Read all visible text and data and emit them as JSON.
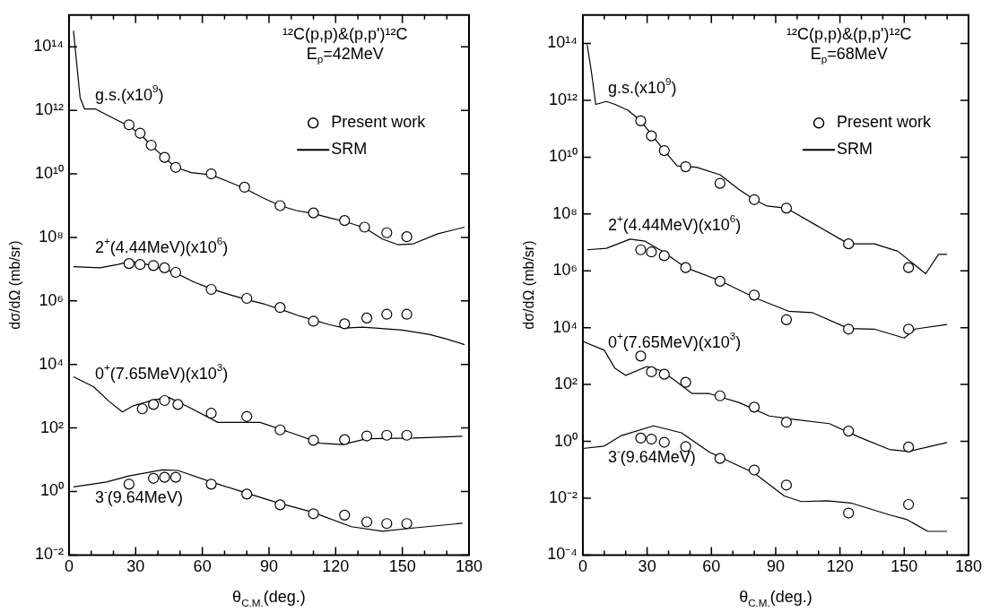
{
  "chart_data": [
    {
      "type": "scatter",
      "title": "¹²C(p,p)&(p,p')¹²C",
      "subtitle": "E$_{p}$=42MeV",
      "xlabel": "θ$_{C.M.}$(deg.)",
      "ylabel": "dσ/dΩ (mb/sr)",
      "log": "y",
      "legend": "top right",
      "xlim": [
        0,
        180
      ],
      "xticks": [
        0,
        {
          "value": 10,
          "label": null
        },
        {
          "value": 20,
          "label": null
        },
        30,
        {
          "value": 40,
          "label": null
        },
        {
          "value": 50,
          "label": null
        },
        60,
        {
          "value": 70,
          "label": null
        },
        {
          "value": 80,
          "label": null
        },
        90,
        {
          "value": 100,
          "label": null
        },
        {
          "value": 110,
          "label": null
        },
        120,
        {
          "value": 130,
          "label": null
        },
        {
          "value": 140,
          "label": null
        },
        150,
        {
          "value": 160,
          "label": null
        },
        {
          "value": 170,
          "label": null
        },
        180
      ],
      "ylim": [
        0.01,
        1000000000000000.0
      ],
      "yticks": [
        {
          "value": 0.01,
          "label": "10⁻²"
        },
        {
          "value": 1,
          "label": "10⁰"
        },
        {
          "value": 100,
          "label": "10²"
        },
        {
          "value": 10000.0,
          "label": "10⁴"
        },
        {
          "value": 1000000.0,
          "label": "10⁶"
        },
        {
          "value": 100000000.0,
          "label": "10⁸"
        },
        {
          "value": 10000000000.0,
          "label": "10¹⁰"
        },
        {
          "value": 1000000000000.0,
          "label": "10¹²"
        },
        {
          "value": 100000000000000.0,
          "label": "10¹⁴"
        }
      ],
      "annotations": [
        "g.s.(x10$^{9}$)",
        "2$^{+}$(4.44MeV)(x10$^{6}$)",
        "0$^{+}$(7.65MeV)(x10$^{3}$)",
        "3$^{-}$(9.64MeV)"
      ],
      "series": [
        {
          "name": "Present work",
          "color": "#000000",
          "marker": "circle",
          "x": [
            27,
            32,
            37,
            43,
            48,
            64,
            79,
            95,
            110,
            124,
            133,
            143,
            152
          ],
          "values": [
            350000000000.0,
            190000000000.0,
            80000000000.0,
            33000000000.0,
            16000000000.0,
            10000000000.0,
            3800000000.0,
            1000000000.0,
            590000000.0,
            340000000.0,
            210000000.0,
            140000000.0,
            105000000.0
          ]
        },
        {
          "type": "line",
          "name": "SRM",
          "color": "#000000",
          "x": [
            2,
            3,
            5,
            7,
            12,
            20,
            27,
            32,
            37,
            43,
            48,
            55,
            64,
            72,
            79,
            87,
            95,
            102,
            110,
            118,
            124,
            133,
            141,
            148,
            155,
            166,
            178
          ],
          "values": [
            320000000000000.0,
            63000000000000.0,
            2500000000000.0,
            1100000000000.0,
            1100000000000.0,
            560000000000.0,
            320000000000.0,
            180000000000.0,
            79000000000.0,
            32000000000.0,
            16000000000.0,
            11000000000.0,
            9300000000.0,
            5600000000.0,
            3500000000.0,
            1800000000.0,
            1000000000.0,
            710000000.0,
            560000000.0,
            400000000.0,
            320000000.0,
            200000000.0,
            89000000.0,
            59000000.0,
            63000000.0,
            130000000.0,
            210000000.0
          ]
        },
        {
          "color": "#000000",
          "marker": "circle",
          "x": [
            27,
            32,
            38,
            43,
            48,
            64,
            80,
            95,
            110,
            124,
            134,
            143,
            152
          ],
          "values": [
            15000000.0,
            14000000.0,
            13000000.0,
            11000000.0,
            7900000.0,
            2300000.0,
            1200000.0,
            620000.0,
            230000.0,
            190000.0,
            290000.0,
            380000.0,
            380000.0
          ]
        },
        {
          "type": "line",
          "color": "#000000",
          "x": [
            2,
            14,
            22,
            27,
            32,
            37,
            43,
            48,
            56,
            64,
            72,
            80,
            88,
            96,
            103,
            110,
            117,
            124,
            132,
            138,
            150,
            162,
            170,
            178
          ],
          "values": [
            12000000.0,
            11000000.0,
            14000000.0,
            17000000.0,
            16000000.0,
            13000000.0,
            10000000.0,
            7600000.0,
            4000000.0,
            2400000.0,
            1600000.0,
            1100000.0,
            790000.0,
            520000.0,
            350000.0,
            250000.0,
            180000.0,
            140000.0,
            150000.0,
            140000.0,
            120000.0,
            89000.0,
            63000.0,
            42000.0
          ]
        },
        {
          "color": "#000000",
          "marker": "circle",
          "x": [
            33,
            38,
            43,
            49,
            64,
            80,
            95,
            110,
            124,
            134,
            143,
            152
          ],
          "values": [
            400,
            550,
            730,
            550,
            290,
            230,
            87,
            41,
            43,
            56,
            59,
            59
          ]
        },
        {
          "type": "line",
          "color": "#000000",
          "x": [
            2,
            11,
            18,
            24,
            29,
            38,
            45,
            54,
            67,
            86,
            102,
            113,
            123,
            134,
            155,
            177
          ],
          "values": [
            4100,
            2000,
            690,
            320,
            500,
            760,
            910,
            450,
            150,
            150,
            63,
            33,
            30,
            46,
            48,
            55
          ]
        },
        {
          "color": "#000000",
          "marker": "circle",
          "x": [
            27,
            38,
            43,
            48,
            64,
            80,
            95,
            110,
            124,
            134,
            143,
            152
          ],
          "values": [
            1.7,
            2.6,
            2.8,
            2.8,
            1.7,
            0.83,
            0.38,
            0.2,
            0.18,
            0.11,
            0.098,
            0.098
          ]
        },
        {
          "type": "line",
          "color": "#000000",
          "x": [
            2,
            17,
            27,
            42,
            49,
            64,
            79,
            94,
            109,
            127,
            141,
            155,
            177
          ],
          "values": [
            1.4,
            2,
            3.1,
            4.8,
            4.6,
            2,
            0.93,
            0.44,
            0.23,
            0.078,
            0.056,
            0.071,
            0.1
          ]
        }
      ]
    },
    {
      "type": "scatter",
      "title": "¹²C(p,p)&(p,p')¹²C",
      "subtitle": "E$_{p}$=68MeV",
      "xlabel": "θ$_{C.M.}$(deg.)",
      "ylabel": "dσ/dΩ (mb/sr)",
      "log": "y",
      "legend": "top right",
      "xlim": [
        0,
        180
      ],
      "xticks": [
        0,
        {
          "value": 10,
          "label": null
        },
        {
          "value": 20,
          "label": null
        },
        30,
        {
          "value": 40,
          "label": null
        },
        {
          "value": 50,
          "label": null
        },
        60,
        {
          "value": 70,
          "label": null
        },
        {
          "value": 80,
          "label": null
        },
        90,
        {
          "value": 100,
          "label": null
        },
        {
          "value": 110,
          "label": null
        },
        120,
        {
          "value": 130,
          "label": null
        },
        {
          "value": 140,
          "label": null
        },
        150,
        {
          "value": 160,
          "label": null
        },
        {
          "value": 170,
          "label": null
        },
        180
      ],
      "ylim": [
        0.0001,
        1000000000000000.0
      ],
      "yticks": [
        {
          "value": 0.0001,
          "label": "10⁻⁴"
        },
        {
          "value": 0.01,
          "label": "10⁻²"
        },
        {
          "value": 1,
          "label": "10⁰"
        },
        {
          "value": 100,
          "label": "10²"
        },
        {
          "value": 10000.0,
          "label": "10⁴"
        },
        {
          "value": 1000000.0,
          "label": "10⁶"
        },
        {
          "value": 100000000.0,
          "label": "10⁸"
        },
        {
          "value": 10000000000.0,
          "label": "10¹⁰"
        },
        {
          "value": 1000000000000.0,
          "label": "10¹²"
        },
        {
          "value": 100000000000000.0,
          "label": "10¹⁴"
        }
      ],
      "annotations": [
        "g.s.(x10$^{9}$)",
        "2$^{+}$(4.44MeV)(x10$^{6}$)",
        "0$^{+}$(7.65MeV)(x10$^{3}$)",
        "3$^{-}$(9.64MeV)"
      ],
      "series": [
        {
          "name": "Present work",
          "color": "#000000",
          "marker": "circle",
          "x": [
            27,
            32,
            38,
            48,
            64,
            80,
            95,
            124,
            152
          ],
          "values": [
            190000000000.0,
            56000000000.0,
            17000000000.0,
            4600000000.0,
            1200000000.0,
            320000000.0,
            160000000.0,
            8900000.0,
            1300000.0
          ]
        },
        {
          "type": "line",
          "name": "SRM",
          "color": "#000000",
          "x": [
            2,
            4,
            6,
            11,
            15,
            21,
            27,
            38,
            44,
            53,
            64,
            73,
            80,
            86,
            95,
            108,
            124,
            136,
            147,
            160,
            166,
            170
          ],
          "values": [
            93000000000000.0,
            10000000000000.0,
            720000000000.0,
            910000000000.0,
            720000000000.0,
            450000000000.0,
            190000000000.0,
            17000000000.0,
            4900000000.0,
            4400000000.0,
            2400000000.0,
            710000000.0,
            320000000.0,
            190000000.0,
            160000000.0,
            44000000.0,
            8900000.0,
            8900000.0,
            4900000.0,
            790000.0,
            3800000.0,
            3800000.0
          ]
        },
        {
          "color": "#000000",
          "marker": "circle",
          "x": [
            27,
            32,
            38,
            48,
            64,
            80,
            95,
            124,
            152
          ],
          "values": [
            5500000.0,
            4600000.0,
            3400000.0,
            1300000.0,
            430000.0,
            140000.0,
            19000.0,
            8900,
            8900
          ]
        },
        {
          "type": "line",
          "color": "#000000",
          "x": [
            2,
            11,
            22,
            29,
            37,
            48,
            64,
            73,
            82,
            96,
            107,
            124,
            136,
            150,
            155,
            170
          ],
          "values": [
            5500000.0,
            6200000.0,
            13000000.0,
            11000000.0,
            4900000.0,
            1300000.0,
            450000.0,
            210000.0,
            100000.0,
            38000.0,
            34000.0,
            9300,
            8900,
            4300,
            8900,
            13000.0
          ]
        },
        {
          "color": "#000000",
          "marker": "circle",
          "x": [
            27,
            32,
            38,
            48,
            64,
            80,
            95,
            124,
            152
          ],
          "values": [
            1000,
            280,
            230,
            120,
            40,
            16,
            4.7,
            2.3,
            0.63
          ]
        },
        {
          "type": "line",
          "color": "#000000",
          "x": [
            0,
            10,
            15,
            20,
            30,
            37,
            51,
            59,
            73,
            87,
            98,
            115,
            129,
            143,
            152,
            170
          ],
          "values": [
            3300,
            1600,
            370,
            210,
            430,
            300,
            48,
            48,
            23,
            7.8,
            6,
            4.2,
            1.4,
            0.52,
            0.44,
            0.91
          ]
        },
        {
          "color": "#000000",
          "marker": "circle",
          "x": [
            27,
            32,
            38,
            48,
            64,
            80,
            95,
            124,
            152
          ],
          "values": [
            1.3,
            1.2,
            0.93,
            0.65,
            0.25,
            0.098,
            0.029,
            0.003,
            0.006
          ]
        },
        {
          "type": "line",
          "color": "#000000",
          "x": [
            0,
            10,
            18,
            33,
            46,
            59,
            80,
            94,
            102,
            114,
            125,
            143,
            151,
            161,
            170
          ],
          "values": [
            0.56,
            0.68,
            1.6,
            3.5,
            2,
            0.42,
            0.076,
            0.012,
            0.0076,
            0.0081,
            0.0068,
            0.0026,
            0.0018,
            0.00068,
            0.00068
          ]
        }
      ]
    }
  ]
}
